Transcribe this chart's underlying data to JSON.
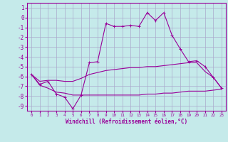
{
  "xlabel": "Windchill (Refroidissement éolien,°C)",
  "bg_color": "#c5eaea",
  "grid_color": "#aaaacc",
  "line_color": "#990099",
  "xlim": [
    -0.5,
    23.5
  ],
  "ylim": [
    -9.5,
    1.5
  ],
  "yticks": [
    1,
    0,
    -1,
    -2,
    -3,
    -4,
    -5,
    -6,
    -7,
    -8,
    -9
  ],
  "xticks": [
    0,
    1,
    2,
    3,
    4,
    5,
    6,
    7,
    8,
    9,
    10,
    11,
    12,
    13,
    14,
    15,
    16,
    17,
    18,
    19,
    20,
    21,
    22,
    23
  ],
  "line1_x": [
    0,
    1,
    2,
    3,
    4,
    5,
    6,
    7,
    8,
    9,
    10,
    11,
    12,
    13,
    14,
    15,
    16,
    17,
    18,
    19,
    20,
    21,
    22,
    23
  ],
  "line1_y": [
    -5.8,
    -6.8,
    -6.5,
    -7.8,
    -8.1,
    -9.3,
    -7.9,
    -4.6,
    -4.5,
    -0.6,
    -0.9,
    -0.9,
    -0.8,
    -0.9,
    0.5,
    -0.3,
    0.5,
    -1.8,
    -3.2,
    -4.5,
    -4.4,
    -5.0,
    -6.1,
    -7.2
  ],
  "line2_x": [
    0,
    1,
    2,
    3,
    4,
    5,
    6,
    7,
    8,
    9,
    10,
    11,
    12,
    13,
    14,
    15,
    16,
    17,
    18,
    19,
    20,
    21,
    22,
    23
  ],
  "line2_y": [
    -5.8,
    -6.5,
    -6.4,
    -6.4,
    -6.5,
    -6.5,
    -6.2,
    -5.8,
    -5.6,
    -5.4,
    -5.3,
    -5.2,
    -5.1,
    -5.1,
    -5.0,
    -5.0,
    -4.9,
    -4.8,
    -4.7,
    -4.6,
    -4.6,
    -5.5,
    -6.1,
    -7.2
  ],
  "line3_x": [
    0,
    1,
    2,
    3,
    4,
    5,
    6,
    7,
    8,
    9,
    10,
    11,
    12,
    13,
    14,
    15,
    16,
    17,
    18,
    19,
    20,
    21,
    22,
    23
  ],
  "line3_y": [
    -5.8,
    -6.9,
    -7.2,
    -7.6,
    -7.7,
    -7.9,
    -7.9,
    -7.9,
    -7.9,
    -7.9,
    -7.9,
    -7.9,
    -7.9,
    -7.9,
    -7.8,
    -7.8,
    -7.7,
    -7.7,
    -7.6,
    -7.5,
    -7.5,
    -7.5,
    -7.4,
    -7.3
  ]
}
